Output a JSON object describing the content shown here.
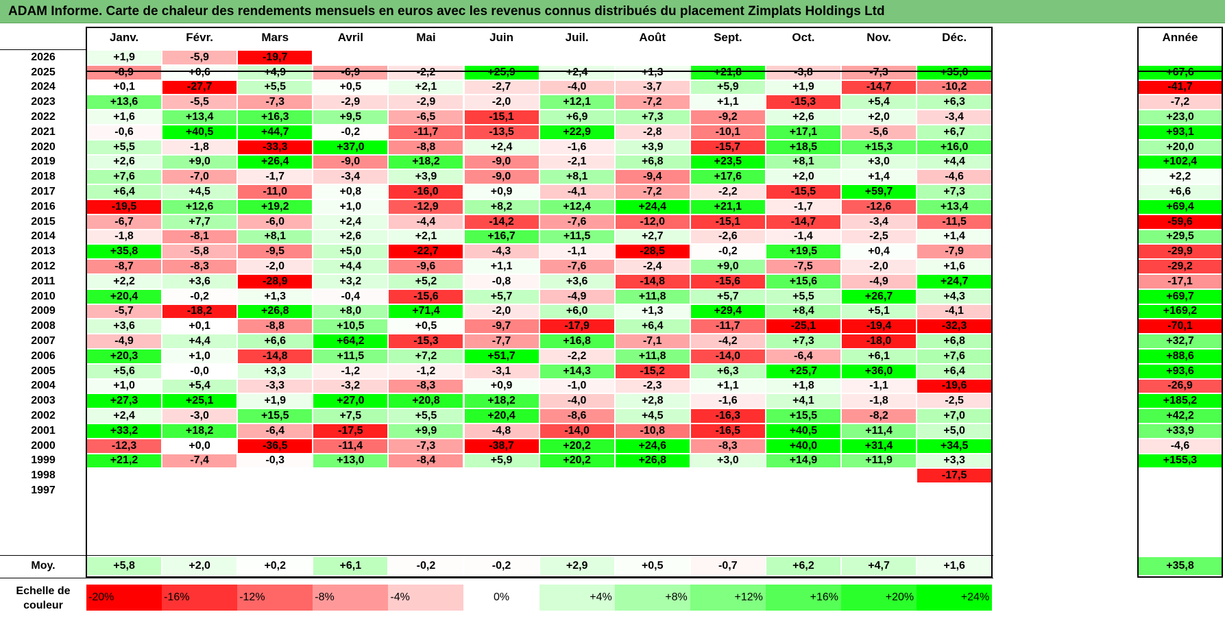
{
  "title": "ADAM Informe. Carte de chaleur des rendements mensuels en euros avec les revenus connus distribués du placement Zimplats Holdings Ltd",
  "chart_data": {
    "type": "heatmap",
    "months": [
      "Janv.",
      "Févr.",
      "Mars",
      "Avril",
      "Mai",
      "Juin",
      "Juil.",
      "Août",
      "Sept.",
      "Oct.",
      "Nov.",
      "Déc."
    ],
    "annual_header": "Année",
    "rows": [
      {
        "year": "2026",
        "values": [
          "+1,9",
          "-5,9",
          "-19,7",
          "",
          "",
          "",
          "",
          "",
          "",
          "",
          "",
          ""
        ],
        "annual": ""
      },
      {
        "year": "2025",
        "values": [
          "-8,9",
          "+0,6",
          "+4,9",
          "-6,9",
          "-2,2",
          "+25,9",
          "+2,4",
          "+1,3",
          "+21,8",
          "-3,8",
          "-7,3",
          "+35,0"
        ],
        "annual": "+67,6"
      },
      {
        "year": "2024",
        "values": [
          "+0,1",
          "-27,7",
          "+5,5",
          "+0,5",
          "+2,1",
          "-2,7",
          "-4,0",
          "-3,7",
          "+5,9",
          "+1,9",
          "-14,7",
          "-10,2"
        ],
        "annual": "-41,7"
      },
      {
        "year": "2023",
        "values": [
          "+13,6",
          "-5,5",
          "-7,3",
          "-2,9",
          "-2,9",
          "-2,0",
          "+12,1",
          "-7,2",
          "+1,1",
          "-15,3",
          "+5,4",
          "+6,3"
        ],
        "annual": "-7,2"
      },
      {
        "year": "2022",
        "values": [
          "+1,6",
          "+13,4",
          "+16,3",
          "+9,5",
          "-6,5",
          "-15,1",
          "+6,9",
          "+7,3",
          "-9,2",
          "+2,6",
          "+2,0",
          "-3,4"
        ],
        "annual": "+23,0"
      },
      {
        "year": "2021",
        "values": [
          "-0,6",
          "+40,5",
          "+44,7",
          "-0,2",
          "-11,7",
          "-13,5",
          "+22,9",
          "-2,8",
          "-10,1",
          "+17,1",
          "-5,6",
          "+6,7"
        ],
        "annual": "+93,1"
      },
      {
        "year": "2020",
        "values": [
          "+5,5",
          "-1,8",
          "-33,3",
          "+37,0",
          "-8,8",
          "+2,4",
          "-1,6",
          "+3,9",
          "-15,7",
          "+18,5",
          "+15,3",
          "+16,0"
        ],
        "annual": "+20,0"
      },
      {
        "year": "2019",
        "values": [
          "+2,6",
          "+9,0",
          "+26,4",
          "-9,0",
          "+18,2",
          "-9,0",
          "-2,1",
          "+6,8",
          "+23,5",
          "+8,1",
          "+3,0",
          "+4,4"
        ],
        "annual": "+102,4"
      },
      {
        "year": "2018",
        "values": [
          "+7,6",
          "-7,0",
          "-1,7",
          "-3,4",
          "+3,9",
          "-9,0",
          "+8,1",
          "-9,4",
          "+17,6",
          "+2,0",
          "+1,4",
          "-4,6"
        ],
        "annual": "+2,2"
      },
      {
        "year": "2017",
        "values": [
          "+6,4",
          "+4,5",
          "-11,0",
          "+0,8",
          "-16,0",
          "+0,9",
          "-4,1",
          "-7,2",
          "-2,2",
          "-15,5",
          "+59,7",
          "+7,3"
        ],
        "annual": "+6,6"
      },
      {
        "year": "2016",
        "values": [
          "-19,5",
          "+12,6",
          "+19,2",
          "+1,0",
          "-12,9",
          "+8,2",
          "+12,4",
          "+24,4",
          "+21,1",
          "-1,7",
          "-12,6",
          "+13,4"
        ],
        "annual": "+69,4"
      },
      {
        "year": "2015",
        "values": [
          "-6,7",
          "+7,7",
          "-6,0",
          "+2,4",
          "-4,4",
          "-14,2",
          "-7,6",
          "-12,0",
          "-15,1",
          "-14,7",
          "-3,4",
          "-11,5"
        ],
        "annual": "-59,6"
      },
      {
        "year": "2014",
        "values": [
          "-1,8",
          "-8,1",
          "+8,1",
          "+2,6",
          "+2,1",
          "+16,7",
          "+11,5",
          "+2,7",
          "-2,6",
          "-1,4",
          "-2,5",
          "+1,4"
        ],
        "annual": "+29,5"
      },
      {
        "year": "2013",
        "values": [
          "+35,8",
          "-5,8",
          "-9,5",
          "+5,0",
          "-22,7",
          "-4,3",
          "-1,1",
          "-28,5",
          "-0,2",
          "+19,5",
          "+0,4",
          "-7,9"
        ],
        "annual": "-29,9"
      },
      {
        "year": "2012",
        "values": [
          "-8,7",
          "-8,3",
          "-2,0",
          "+4,4",
          "-9,6",
          "+1,1",
          "-7,6",
          "-2,4",
          "+9,0",
          "-7,5",
          "-2,0",
          "+1,6"
        ],
        "annual": "-29,2"
      },
      {
        "year": "2011",
        "values": [
          "+2,2",
          "+3,6",
          "-28,9",
          "+3,2",
          "+5,2",
          "-0,8",
          "+3,6",
          "-14,8",
          "-15,6",
          "+15,6",
          "-4,9",
          "+24,7"
        ],
        "annual": "-17,1"
      },
      {
        "year": "2010",
        "values": [
          "+20,4",
          "-0,2",
          "+1,3",
          "-0,4",
          "-15,6",
          "+5,7",
          "-4,9",
          "+11,8",
          "+5,7",
          "+5,5",
          "+26,7",
          "+4,3"
        ],
        "annual": "+69,7"
      },
      {
        "year": "2009",
        "values": [
          "-5,7",
          "-18,2",
          "+26,8",
          "+8,0",
          "+71,4",
          "-2,0",
          "+6,0",
          "+1,3",
          "+29,4",
          "+8,4",
          "+5,1",
          "-4,1"
        ],
        "annual": "+169,2"
      },
      {
        "year": "2008",
        "values": [
          "+3,6",
          "+0,1",
          "-8,8",
          "+10,5",
          "+0,5",
          "-9,7",
          "-17,9",
          "+6,4",
          "-11,7",
          "-25,1",
          "-19,4",
          "-32,3"
        ],
        "annual": "-70,1"
      },
      {
        "year": "2007",
        "values": [
          "-4,9",
          "+4,4",
          "+6,6",
          "+64,2",
          "-15,3",
          "-7,7",
          "+16,8",
          "-7,1",
          "-4,2",
          "+7,3",
          "-18,0",
          "+6,8"
        ],
        "annual": "+32,7"
      },
      {
        "year": "2006",
        "values": [
          "+20,3",
          "+1,0",
          "-14,8",
          "+11,5",
          "+7,2",
          "+51,7",
          "-2,2",
          "+11,8",
          "-14,0",
          "-6,4",
          "+6,1",
          "+7,6"
        ],
        "annual": "+88,6"
      },
      {
        "year": "2005",
        "values": [
          "+5,6",
          "-0,0",
          "+3,3",
          "-1,2",
          "-1,2",
          "-3,1",
          "+14,3",
          "-15,2",
          "+6,3",
          "+25,7",
          "+36,0",
          "+6,4"
        ],
        "annual": "+93,6"
      },
      {
        "year": "2004",
        "values": [
          "+1,0",
          "+5,4",
          "-3,3",
          "-3,2",
          "-8,3",
          "+0,9",
          "-1,0",
          "-2,3",
          "+1,1",
          "+1,8",
          "-1,1",
          "-19,6"
        ],
        "annual": "-26,9"
      },
      {
        "year": "2003",
        "values": [
          "+27,3",
          "+25,1",
          "+1,9",
          "+27,0",
          "+20,8",
          "+18,2",
          "-4,0",
          "+2,8",
          "-1,6",
          "+4,1",
          "-1,8",
          "-2,5"
        ],
        "annual": "+185,2"
      },
      {
        "year": "2002",
        "values": [
          "+2,4",
          "-3,0",
          "+15,5",
          "+7,5",
          "+5,5",
          "+20,4",
          "-8,6",
          "+4,5",
          "-16,3",
          "+15,5",
          "-8,2",
          "+7,0"
        ],
        "annual": "+42,2"
      },
      {
        "year": "2001",
        "values": [
          "+33,2",
          "+18,2",
          "-6,4",
          "-17,5",
          "+9,9",
          "-4,8",
          "-14,0",
          "-10,8",
          "-16,5",
          "+40,5",
          "+11,4",
          "+5,0"
        ],
        "annual": "+33,9"
      },
      {
        "year": "2000",
        "values": [
          "-12,3",
          "+0,0",
          "-36,5",
          "-11,4",
          "-7,3",
          "-38,7",
          "+20,2",
          "+24,6",
          "-8,3",
          "+40,0",
          "+31,4",
          "+34,5"
        ],
        "annual": "-4,6"
      },
      {
        "year": "1999",
        "values": [
          "+21,2",
          "-7,4",
          "-0,3",
          "+13,0",
          "-8,4",
          "+5,9",
          "+20,2",
          "+26,8",
          "+3,0",
          "+14,9",
          "+11,9",
          "+3,3"
        ],
        "annual": "+155,3"
      },
      {
        "year": "1998",
        "values": [
          "",
          "",
          "",
          "",
          "",
          "",
          "",
          "",
          "",
          "",
          "",
          "-17,5"
        ],
        "annual": ""
      },
      {
        "year": "1997",
        "values": [
          "",
          "",
          "",
          "",
          "",
          "",
          "",
          "",
          "",
          "",
          "",
          ""
        ],
        "annual": ""
      }
    ],
    "average": {
      "label": "Moy.",
      "values": [
        "+5,8",
        "+2,0",
        "+0,2",
        "+6,1",
        "-0,2",
        "-0,2",
        "+2,9",
        "+0,5",
        "-0,7",
        "+6,2",
        "+4,7",
        "+1,6"
      ],
      "annual": "+35,8"
    },
    "color_scale": {
      "label": "Echelle de couleur",
      "steps": [
        "-20%",
        "-16%",
        "-12%",
        "-8%",
        "-4%",
        "0%",
        "+4%",
        "+8%",
        "+12%",
        "+16%",
        "+20%",
        "+24%"
      ]
    },
    "colors": {
      "negative_max": "#ff0000",
      "neutral": "#ffffff",
      "positive_max": "#00ff00",
      "title_bar": "#7cc57c"
    }
  }
}
